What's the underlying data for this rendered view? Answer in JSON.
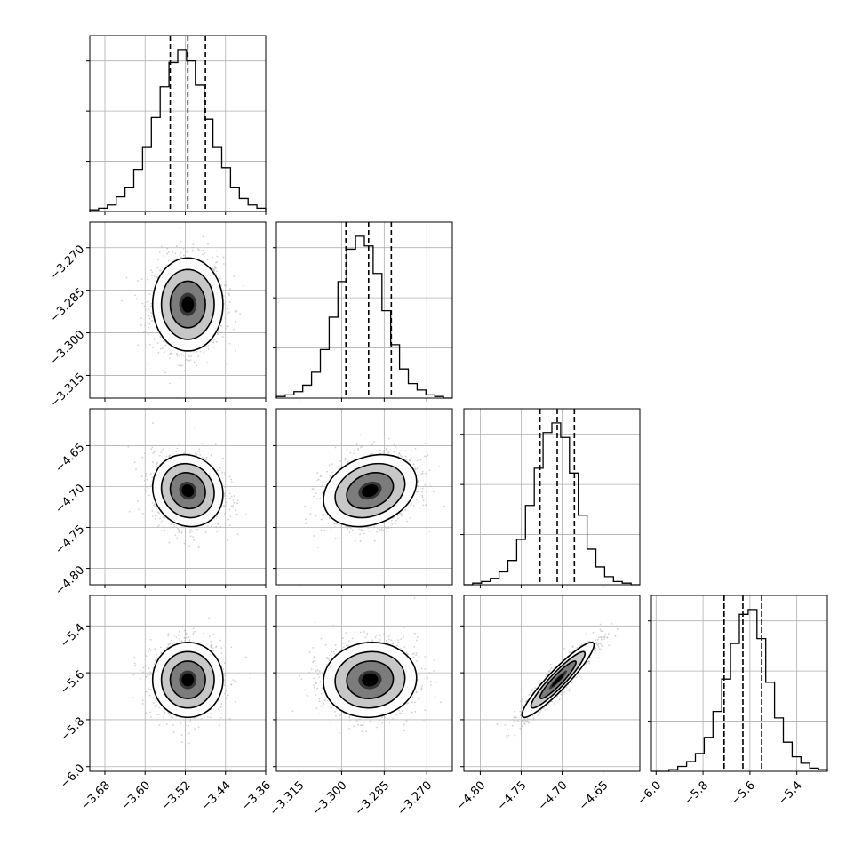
{
  "chart_data": {
    "type": "corner",
    "grid": true,
    "colors": {
      "line": "#000000",
      "grid": "#b0b0b0",
      "scatter": "#bdbdbd",
      "density": "#000000"
    },
    "parameters": [
      {
        "range": [
          -3.71,
          -3.36
        ],
        "mean": -3.515,
        "sd": 0.035,
        "ticks": [
          -3.68,
          -3.6,
          -3.52,
          -3.44,
          -3.36
        ],
        "tick_labels": [
          "−3.68",
          "−3.60",
          "−3.52",
          "−3.44",
          "−3.36"
        ]
      },
      {
        "range": [
          -3.323,
          -3.261
        ],
        "mean": -3.29,
        "sd": 0.0082,
        "ticks": [
          -3.315,
          -3.3,
          -3.285,
          -3.27
        ],
        "tick_labels": [
          "−3.315",
          "−3.300",
          "−3.285",
          "−3.270"
        ]
      },
      {
        "range": [
          -4.82,
          -4.605
        ],
        "mean": -4.705,
        "sd": 0.022,
        "ticks": [
          -4.8,
          -4.75,
          -4.7,
          -4.65
        ],
        "tick_labels": [
          "−4.80",
          "−4.75",
          "−4.70",
          "−4.65"
        ]
      },
      {
        "range": [
          -6.02,
          -5.27
        ],
        "mean": -5.63,
        "sd": 0.08,
        "ticks": [
          -6.0,
          -5.8,
          -5.6,
          -5.4
        ],
        "tick_labels": [
          "−6.0",
          "−5.8",
          "−5.6",
          "−5.4"
        ]
      }
    ],
    "quantiles": [
      [
        -3.55,
        -3.515,
        -3.48
      ],
      [
        -3.2985,
        -3.2905,
        -3.2825
      ],
      [
        -4.727,
        -4.706,
        -4.685
      ],
      [
        -5.71,
        -5.63,
        -5.55
      ]
    ],
    "histograms": [
      [
        0.01,
        0.02,
        0.04,
        0.09,
        0.15,
        0.26,
        0.4,
        0.58,
        0.77,
        0.92,
        1.0,
        0.93,
        0.78,
        0.57,
        0.4,
        0.27,
        0.15,
        0.08,
        0.04,
        0.02
      ],
      [
        0.01,
        0.02,
        0.04,
        0.08,
        0.16,
        0.3,
        0.5,
        0.72,
        0.92,
        1.0,
        0.94,
        0.77,
        0.54,
        0.33,
        0.18,
        0.09,
        0.05,
        0.02,
        0.01,
        0.0
      ],
      [
        0.0,
        0.01,
        0.02,
        0.04,
        0.08,
        0.15,
        0.28,
        0.49,
        0.72,
        0.94,
        1.0,
        0.91,
        0.69,
        0.43,
        0.22,
        0.11,
        0.05,
        0.02,
        0.01,
        0.0
      ],
      [
        0.0,
        0.0,
        0.01,
        0.03,
        0.06,
        0.11,
        0.21,
        0.37,
        0.57,
        0.79,
        0.97,
        1.0,
        0.82,
        0.55,
        0.33,
        0.18,
        0.09,
        0.05,
        0.02,
        0.01
      ]
    ],
    "correlations": [
      [
        1.0,
        0.0,
        -0.1,
        0.0
      ],
      [
        0.0,
        1.0,
        0.25,
        0.05
      ],
      [
        -0.1,
        0.25,
        1.0,
        0.93
      ],
      [
        0.0,
        0.05,
        0.93,
        1.0
      ]
    ],
    "contour_levels": [
      0.5,
      1.0,
      1.5,
      2.0
    ]
  }
}
